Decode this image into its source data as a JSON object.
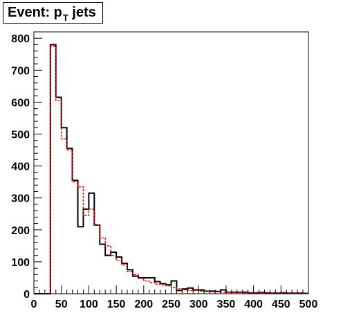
{
  "title": {
    "main": "Event: p",
    "sub": "T",
    "suffix": " jets"
  },
  "chart_data": {
    "type": "histogram",
    "title": "Event: pT jets",
    "xlim": [
      0,
      500
    ],
    "ylim": [
      0,
      820
    ],
    "bin_width": 10,
    "x_ticks": [
      0,
      50,
      100,
      150,
      200,
      250,
      300,
      350,
      400,
      450,
      500
    ],
    "y_ticks": [
      0,
      100,
      200,
      300,
      400,
      500,
      600,
      700,
      800
    ],
    "bin_edges": [
      0,
      10,
      20,
      30,
      40,
      50,
      60,
      70,
      80,
      90,
      100,
      110,
      120,
      130,
      140,
      150,
      160,
      170,
      180,
      190,
      200,
      210,
      220,
      230,
      240,
      250,
      260,
      270,
      280,
      290,
      300,
      310,
      320,
      330,
      340,
      350,
      360,
      370,
      380,
      390,
      400,
      410,
      420,
      430,
      440,
      450,
      460,
      470,
      480,
      490,
      500
    ],
    "series": [
      {
        "style": "solid",
        "color": "#000000",
        "values": [
          0,
          0,
          0,
          780,
          615,
          520,
          455,
          355,
          210,
          265,
          315,
          215,
          155,
          120,
          130,
          115,
          95,
          75,
          55,
          50,
          50,
          50,
          38,
          32,
          28,
          40,
          10,
          15,
          18,
          12,
          12,
          8,
          8,
          7,
          12,
          5,
          5,
          5,
          5,
          3,
          3,
          4,
          3,
          2,
          2,
          3,
          2,
          2,
          2,
          1
        ]
      },
      {
        "style": "dashed",
        "color": "#e00000",
        "values": [
          0,
          0,
          0,
          775,
          605,
          485,
          450,
          350,
          335,
          245,
          265,
          215,
          175,
          150,
          120,
          105,
          90,
          70,
          60,
          48,
          40,
          35,
          30,
          28,
          25,
          20,
          15,
          12,
          10,
          10,
          8,
          8,
          6,
          6,
          5,
          5,
          4,
          4,
          3,
          3,
          3,
          3,
          2,
          2,
          2,
          2,
          2,
          2,
          1,
          1
        ]
      }
    ]
  }
}
